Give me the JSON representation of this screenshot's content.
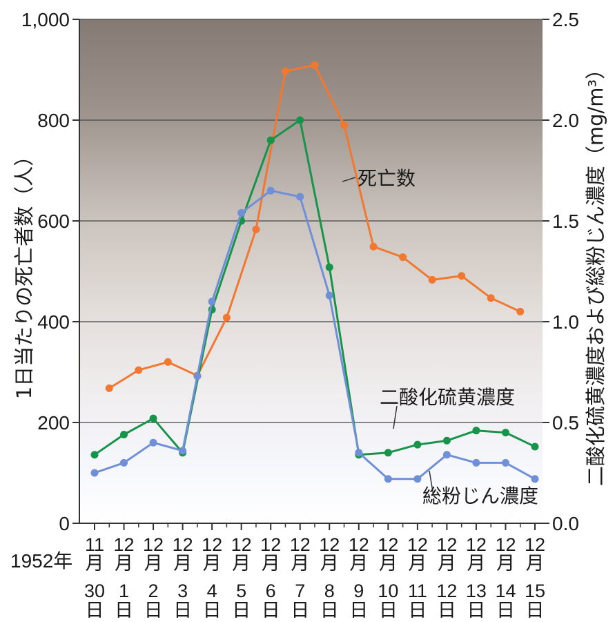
{
  "chart_data": {
    "type": "line",
    "year_label": "1952年",
    "x_labels": [
      [
        "11",
        "月",
        "30",
        "日"
      ],
      [
        "12",
        "月",
        "1",
        "日"
      ],
      [
        "12",
        "月",
        "2",
        "日"
      ],
      [
        "12",
        "月",
        "3",
        "日"
      ],
      [
        "12",
        "月",
        "4",
        "日"
      ],
      [
        "12",
        "月",
        "5",
        "日"
      ],
      [
        "12",
        "月",
        "6",
        "日"
      ],
      [
        "12",
        "月",
        "7",
        "日"
      ],
      [
        "12",
        "月",
        "8",
        "日"
      ],
      [
        "12",
        "月",
        "9",
        "日"
      ],
      [
        "12",
        "月",
        "10",
        "日"
      ],
      [
        "12",
        "月",
        "11",
        "日"
      ],
      [
        "12",
        "月",
        "12",
        "日"
      ],
      [
        "12",
        "月",
        "13",
        "日"
      ],
      [
        "12",
        "月",
        "14",
        "日"
      ],
      [
        "12",
        "月",
        "15",
        "日"
      ]
    ],
    "y_left": {
      "label": "1日当たりの死亡者数（人）",
      "ylim": [
        0,
        1000
      ],
      "ticks": [
        "0",
        "200",
        "400",
        "600",
        "800",
        "1,000"
      ]
    },
    "y_right": {
      "label": "二酸化硫黄濃度および総粉じん濃度（mg/m³）",
      "ylim": [
        0,
        2.5
      ],
      "ticks": [
        "0.0",
        "0.5",
        "1.0",
        "1.5",
        "2.0",
        "2.5"
      ]
    },
    "grid": true,
    "series": [
      {
        "name": "死亡数",
        "axis": "left",
        "color": "#f07830",
        "points": [
          [
            0.5,
            268
          ],
          [
            1.5,
            304
          ],
          [
            2.5,
            320
          ],
          [
            3.5,
            293
          ],
          [
            4.5,
            408
          ],
          [
            5.5,
            583
          ],
          [
            6.5,
            897
          ],
          [
            7.5,
            909
          ],
          [
            8.5,
            790
          ],
          [
            9.5,
            549
          ],
          [
            10.5,
            528
          ],
          [
            11.5,
            483
          ],
          [
            12.5,
            491
          ],
          [
            13.5,
            447
          ],
          [
            14.5,
            420
          ]
        ]
      },
      {
        "name": "二酸化硫黄濃度",
        "axis": "right",
        "color": "#17944a",
        "points": [
          [
            0,
            0.34
          ],
          [
            1,
            0.44
          ],
          [
            2,
            0.52
          ],
          [
            3,
            0.35
          ],
          [
            4,
            1.06
          ],
          [
            5,
            1.5
          ],
          [
            6,
            1.9
          ],
          [
            7,
            2.0
          ],
          [
            8,
            1.27
          ],
          [
            9,
            0.34
          ],
          [
            10,
            0.35
          ],
          [
            11,
            0.39
          ],
          [
            12,
            0.41
          ],
          [
            13,
            0.46
          ],
          [
            14,
            0.45
          ],
          [
            15,
            0.38
          ]
        ]
      },
      {
        "name": "総粉じん濃度",
        "axis": "right",
        "color": "#6f8fd6",
        "points": [
          [
            0,
            0.25
          ],
          [
            1,
            0.3
          ],
          [
            2,
            0.4
          ],
          [
            3,
            0.36
          ],
          [
            3.5,
            0.73
          ],
          [
            4,
            1.1
          ],
          [
            5,
            1.54
          ],
          [
            6,
            1.65
          ],
          [
            7,
            1.62
          ],
          [
            8,
            1.13
          ],
          [
            9,
            0.35
          ],
          [
            10,
            0.22
          ],
          [
            11,
            0.22
          ],
          [
            12,
            0.34
          ],
          [
            13,
            0.3
          ],
          [
            14,
            0.3
          ],
          [
            15,
            0.22
          ]
        ]
      }
    ],
    "annotations": [
      "死亡数",
      "二酸化硫黄濃度",
      "総粉じん濃度"
    ]
  }
}
